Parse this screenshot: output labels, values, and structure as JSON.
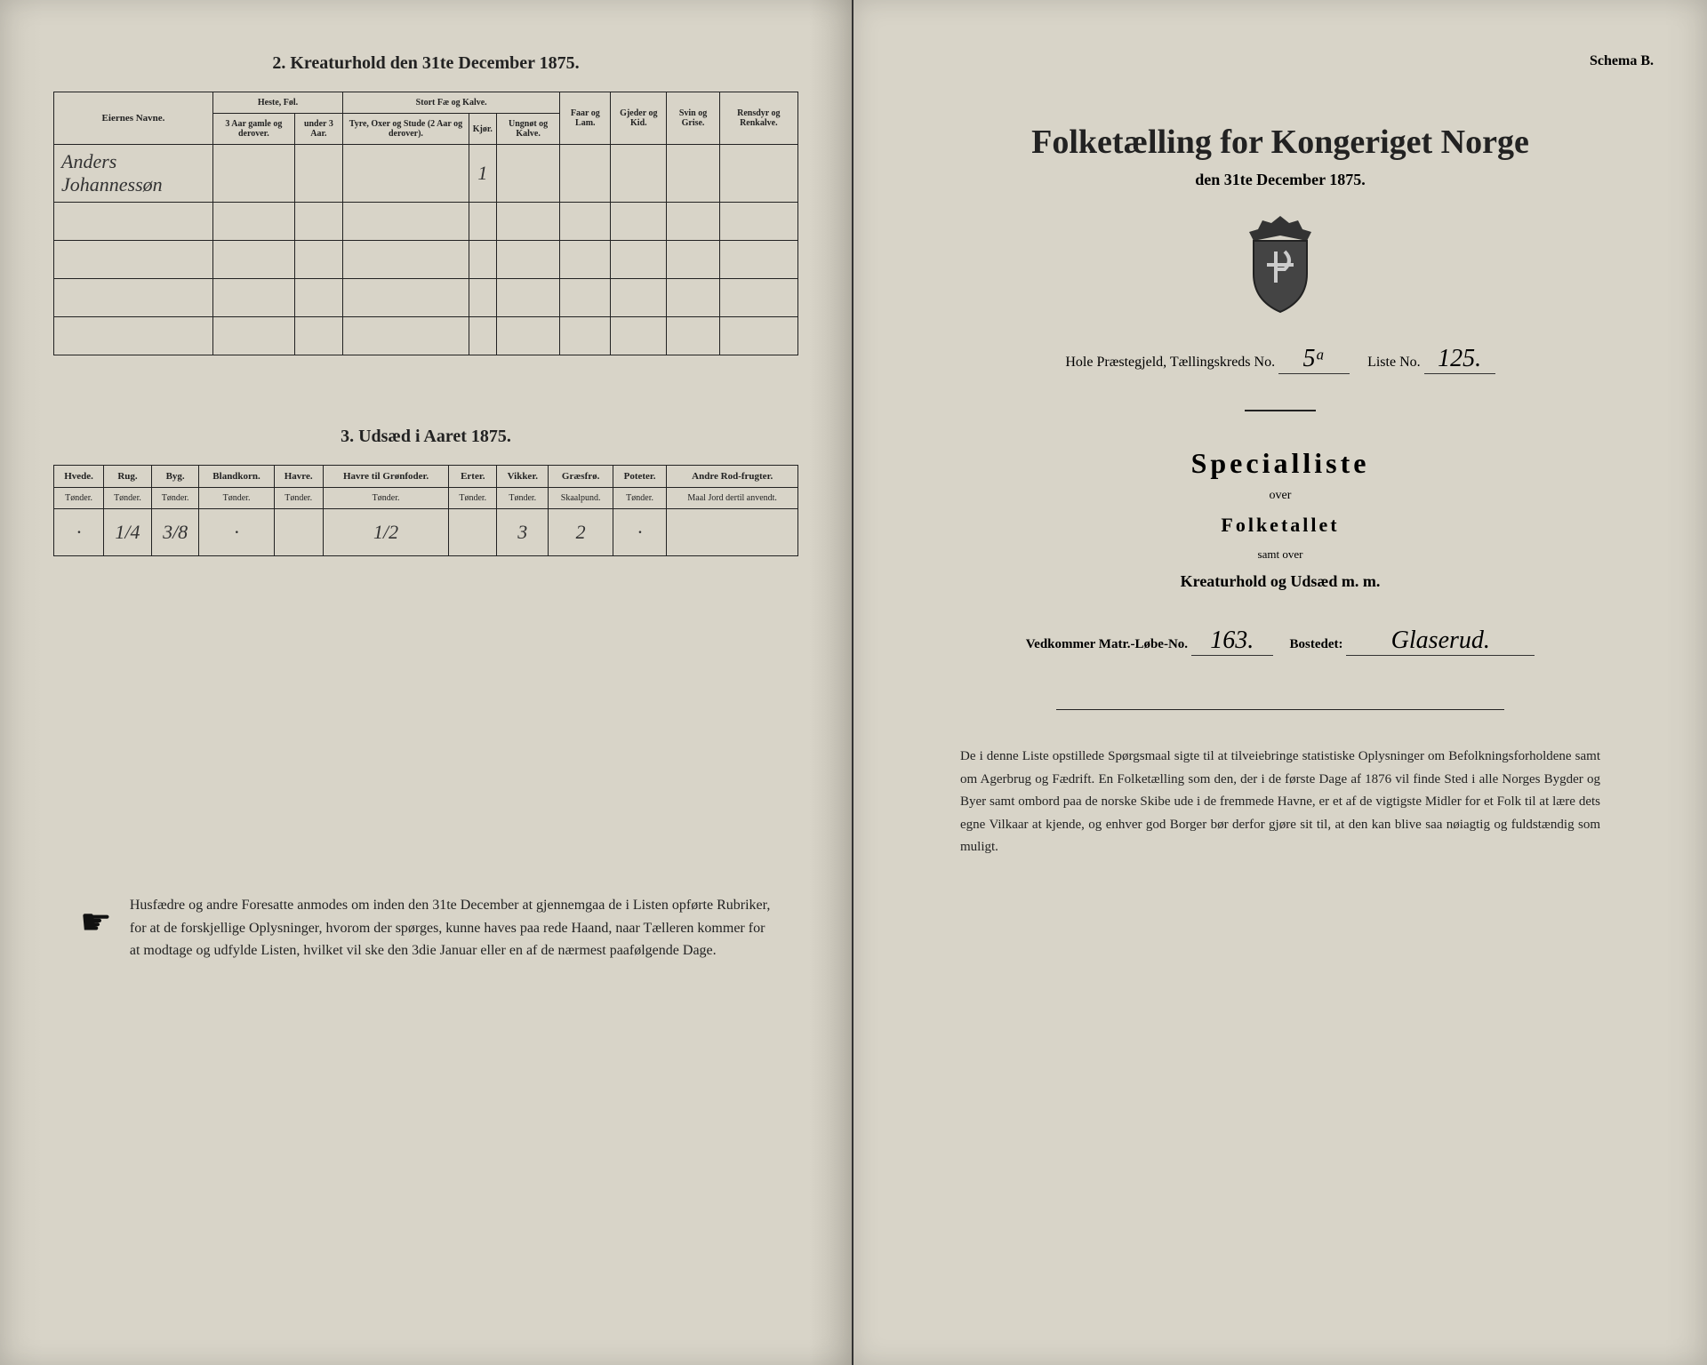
{
  "left": {
    "section2_heading": "2.  Kreaturhold den 31te December 1875.",
    "table1": {
      "col_name": "Eiernes Navne.",
      "grp_heste": "Heste, Føl.",
      "grp_fae": "Stort Fæ og Kalve.",
      "col_faar": "Faar og Lam.",
      "col_gjeder": "Gjeder og Kid.",
      "col_svin": "Svin og Grise.",
      "col_rensdyr": "Rensdyr og Renkalve.",
      "sub_h1": "3 Aar gamle og derover.",
      "sub_h2": "under 3 Aar.",
      "sub_f1": "Tyre, Oxer og Stude (2 Aar og derover).",
      "sub_f2": "Kjør.",
      "sub_f3": "Ungnøt og Kalve.",
      "row1_name": "Anders Johannessøn",
      "row1_kjor": "1"
    },
    "section3_heading": "3.  Udsæd i Aaret 1875.",
    "table3": {
      "cols": [
        "Hvede.",
        "Rug.",
        "Byg.",
        "Blandkorn.",
        "Havre.",
        "Havre til Grønfoder.",
        "Erter.",
        "Vikker.",
        "Græsfrø.",
        "Poteter.",
        "Andre Rod-frugter."
      ],
      "units": [
        "Tønder.",
        "Tønder.",
        "Tønder.",
        "Tønder.",
        "Tønder.",
        "Tønder.",
        "Tønder.",
        "Tønder.",
        "Skaalpund.",
        "Tønder.",
        "Maal Jord dertil anvendt."
      ],
      "values": [
        "·",
        "1/4",
        "3/8",
        "·",
        "",
        "1/2",
        "",
        "3",
        "2",
        "·",
        ""
      ]
    },
    "footer": "Husfædre og andre Foresatte anmodes om inden den 31te December at gjennemgaa de i Listen opførte Rubriker, for at de forskjellige Oplysninger, hvorom der spørges, kunne haves paa rede Haand, naar Tælleren kommer for at modtage og udfylde Listen, hvilket vil ske den 3die Januar eller en af de nærmest paafølgende Dage."
  },
  "right": {
    "schema": "Schema B.",
    "title": "Folketælling for Kongeriget Norge",
    "subtitle": "den 31te December 1875.",
    "meta_pg": "Hole Præstegjeld, Tællingskreds No.",
    "meta_kreds": "5ᵃ",
    "meta_liste_lbl": "Liste No.",
    "meta_liste": "125.",
    "specialliste": "Specialliste",
    "over": "over",
    "folketallet": "Folketallet",
    "samt_over": "samt over",
    "kreatur": "Kreaturhold og Udsæd m. m.",
    "vedkommer_lbl": "Vedkommer Matr.-Løbe-No.",
    "matr_no": "163.",
    "bosted_lbl": "Bostedet:",
    "bosted": "Glaserud.",
    "bottom": "De i denne Liste opstillede Spørgsmaal sigte til at tilveiebringe statistiske Oplysninger om Befolkningsforholdene samt om Agerbrug og Fædrift. En Folketælling som den, der i de første Dage af 1876 vil finde Sted i alle Norges Bygder og Byer samt ombord paa de norske Skibe ude i de fremmede Havne, er et af de vigtigste Midler for et Folk til at lære dets egne Vilkaar at kjende, og enhver god Borger bør derfor gjøre sit til, at den kan blive saa nøiagtig og fuldstændig som muligt."
  },
  "colors": {
    "paper": "#d8d4c8",
    "ink": "#222222",
    "border": "#222222"
  }
}
